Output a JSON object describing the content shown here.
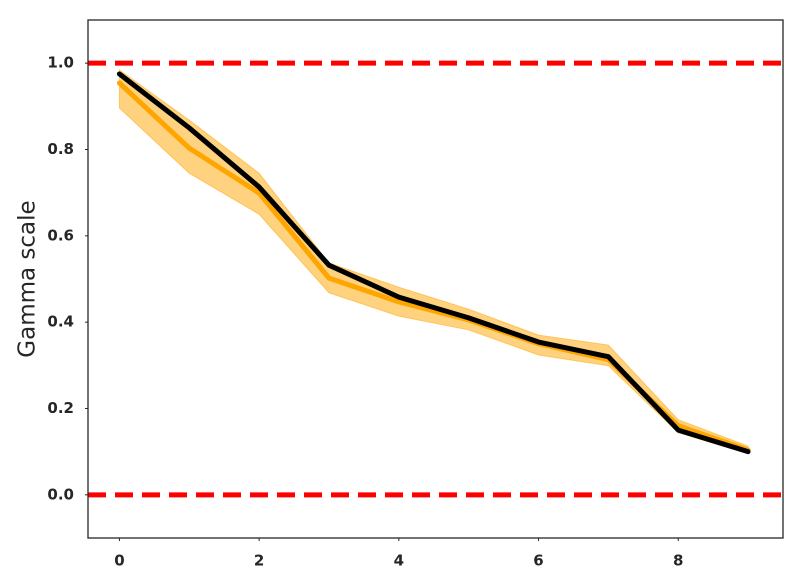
{
  "chart_data": {
    "type": "line",
    "ylabel": "Gamma scale",
    "x": [
      0,
      1,
      2,
      3,
      4,
      5,
      6,
      7,
      8,
      9
    ],
    "series": [
      {
        "color": "#ffa500",
        "values": [
          0.954,
          0.803,
          0.699,
          0.502,
          0.447,
          0.405,
          0.35,
          0.313,
          0.16,
          0.104
        ]
      },
      {
        "color": "#000000",
        "values": [
          0.975,
          0.85,
          0.713,
          0.532,
          0.458,
          0.41,
          0.354,
          0.32,
          0.15,
          0.1
        ]
      }
    ],
    "bands": [
      {
        "color": "#ffa500",
        "lower": [
          0.896,
          0.745,
          0.65,
          0.468,
          0.414,
          0.382,
          0.324,
          0.299,
          0.144,
          0.095
        ],
        "upper": [
          0.984,
          0.868,
          0.745,
          0.537,
          0.481,
          0.43,
          0.37,
          0.347,
          0.174,
          0.113
        ]
      }
    ],
    "hlines": [
      {
        "value": 1.0,
        "color": "#ff0000"
      },
      {
        "value": 0.0,
        "color": "#ff0000"
      }
    ],
    "xlim": [
      -0.45,
      9.5
    ],
    "ylim": [
      -0.1,
      1.1
    ],
    "xticks": [
      0,
      2,
      4,
      6,
      8
    ],
    "yticks": [
      {
        "value": 0,
        "label": "0.0"
      },
      {
        "value": 0.2,
        "label": "0.2"
      },
      {
        "value": 0.4,
        "label": "0.4"
      },
      {
        "value": 0.6,
        "label": "0.6"
      },
      {
        "value": 0.8,
        "label": "0.8"
      },
      {
        "value": 1.0,
        "label": "1.0"
      }
    ]
  }
}
